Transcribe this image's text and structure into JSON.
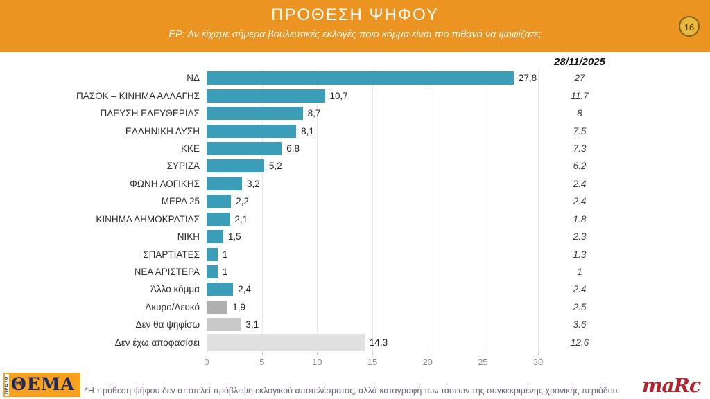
{
  "header": {
    "title": "ΠΡΟΘΕΣΗ ΨΗΦΟΥ",
    "subtitle": "ΕΡ: Αν είχαμε σήμερα βουλευτικές εκλογές ποιο κόμμα είναι πιο πιθανό να ψηφίζατε;",
    "page_number": "16"
  },
  "chart_data": {
    "type": "bar",
    "orientation": "horizontal",
    "title": "ΠΡΟΘΕΣΗ ΨΗΦΟΥ",
    "xlabel": "",
    "ylabel": "",
    "xlim": [
      0,
      30
    ],
    "xticks": [
      0,
      5,
      10,
      15,
      20,
      25,
      30
    ],
    "grid": "vertical",
    "legend": "none",
    "date_column_header": "28/11/2025",
    "categories": [
      "ΝΔ",
      "ΠΑΣΟΚ – ΚΙΝΗΜΑ ΑΛΛΑΓΗΣ",
      "ΠΛΕΥΣΗ ΕΛΕΥΘΕΡΙΑΣ",
      "ΕΛΛΗΝΙΚΗ ΛΥΣΗ",
      "ΚΚΕ",
      "ΣΥΡΙΖΑ",
      "ΦΩΝΗ ΛΟΓΙΚΗΣ",
      "ΜΕΡΑ 25",
      "ΚΙΝΗΜΑ ΔΗΜΟΚΡΑΤΙΑΣ",
      "ΝΙΚΗ",
      "ΣΠΑΡΤΙΑΤΕΣ",
      "ΝΕΑ ΑΡΙΣΤΕΡΑ",
      "Άλλο κόμμα",
      "Άκυρο/Λευκό",
      "Δεν θα ψηφίσω",
      "Δεν έχω αποφασίσει"
    ],
    "series": [
      {
        "name": "current",
        "values": [
          27.8,
          10.7,
          8.7,
          8.1,
          6.8,
          5.2,
          3.2,
          2.2,
          2.1,
          1.5,
          1,
          1,
          2.4,
          1.9,
          3.1,
          14.3
        ],
        "labels": [
          "27,8",
          "10,7",
          "8,7",
          "8,1",
          "6,8",
          "5,2",
          "3,2",
          "2,2",
          "2,1",
          "1,5",
          "1",
          "1",
          "2,4",
          "1,9",
          "3,1",
          "14,3"
        ]
      },
      {
        "name": "28/11/2025",
        "values": [
          27,
          11.7,
          8,
          7.5,
          7.3,
          6.2,
          2.4,
          2.4,
          1.8,
          2.3,
          1.3,
          1,
          2.4,
          2.5,
          3.6,
          12.6
        ],
        "labels": [
          "27",
          "11.7",
          "8",
          "7.5",
          "7.3",
          "6.2",
          "2.4",
          "2.4",
          "1.8",
          "2.3",
          "1.3",
          "1",
          "2.4",
          "2.5",
          "3.6",
          "12.6"
        ]
      }
    ],
    "bar_colors": [
      "#3B9DB8",
      "#3B9DB8",
      "#3B9DB8",
      "#3B9DB8",
      "#3B9DB8",
      "#3B9DB8",
      "#3B9DB8",
      "#3B9DB8",
      "#3B9DB8",
      "#3B9DB8",
      "#3B9DB8",
      "#3B9DB8",
      "#3B9DB8",
      "#AFAFAF",
      "#C9C9C9",
      "#E0E0E0"
    ],
    "row_sizes": [
      "normal",
      "normal",
      "normal",
      "normal",
      "normal",
      "normal",
      "normal",
      "normal",
      "normal",
      "normal",
      "normal",
      "normal",
      "normal",
      "normal",
      "normal",
      "large"
    ]
  },
  "colors": {
    "header_orange": "#EC9421",
    "bar_teal": "#3B9DB8",
    "bar_gray_invalid": "#AFAFAF",
    "bar_gray_abstain": "#C9C9C9",
    "bar_gray_undecided": "#E0E0E0",
    "marc_red": "#B2232E",
    "thema_navy": "#1F2A5E",
    "thema_orange": "#F7A11F"
  },
  "footer": {
    "logo_thema": "ΘΕΜΑ",
    "logo_thema_vertical": "ΠΡΩΤΟ",
    "footnote": "*Η πρόθεση ψήφου δεν αποτελεί πρόβλεψη εκλογικού αποτελέσματος, αλλά καταγραφή των τάσεων της συγκεκριμένης χρονικής περιόδου.",
    "logo_marc": "maRc"
  }
}
